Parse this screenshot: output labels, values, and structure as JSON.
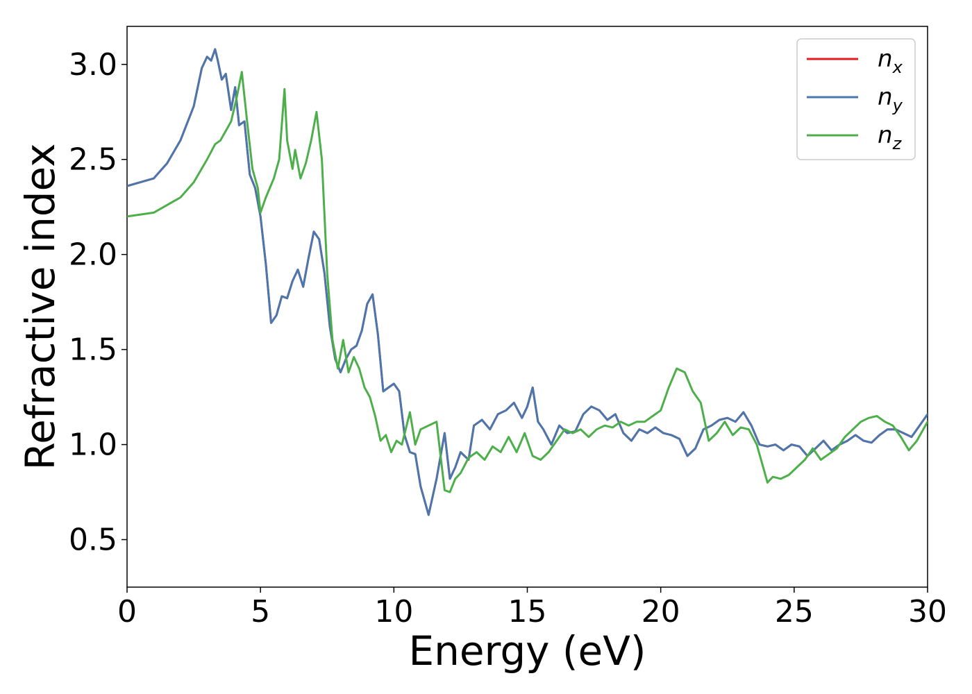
{
  "chart_data": {
    "type": "line",
    "xlabel": "Energy (eV)",
    "ylabel": "Refractive index",
    "xlim": [
      0,
      30
    ],
    "ylim": [
      0.25,
      3.2
    ],
    "x_ticks": [
      0,
      5,
      10,
      15,
      20,
      25,
      30
    ],
    "y_ticks": [
      0.5,
      1.0,
      1.5,
      2.0,
      2.5,
      3.0
    ],
    "x_tick_labels": [
      "0",
      "5",
      "10",
      "15",
      "20",
      "25",
      "30"
    ],
    "y_tick_labels": [
      "0.5",
      "1.0",
      "1.5",
      "2.0",
      "2.5",
      "3.0"
    ],
    "grid": false,
    "legend_position": "top-right",
    "series": [
      {
        "name": "n_x",
        "legend_base": "n",
        "legend_sub": "x",
        "color": "#e41a1c",
        "x": [
          0,
          1,
          1.5,
          2,
          2.5,
          2.8,
          3.0,
          3.15,
          3.3,
          3.4,
          3.55,
          3.7,
          3.9,
          4.05,
          4.2,
          4.4,
          4.6,
          4.8,
          5.0,
          5.2,
          5.4,
          5.6,
          5.8,
          6.0,
          6.2,
          6.4,
          6.6,
          6.8,
          7.0,
          7.2,
          7.4,
          7.6,
          7.8,
          8.0,
          8.2,
          8.4,
          8.6,
          8.8,
          9.0,
          9.2,
          9.4,
          9.6,
          9.8,
          10.0,
          10.2,
          10.4,
          10.6,
          10.8,
          11.0,
          11.3,
          11.6,
          11.9,
          12.1,
          12.3,
          12.5,
          12.8,
          13.0,
          13.3,
          13.6,
          13.9,
          14.2,
          14.5,
          14.8,
          15.0,
          15.2,
          15.4,
          15.6,
          15.9,
          16.2,
          16.5,
          16.8,
          17.1,
          17.4,
          17.7,
          18.0,
          18.3,
          18.6,
          18.9,
          19.2,
          19.5,
          19.8,
          20.1,
          20.4,
          20.7,
          21.0,
          21.3,
          21.6,
          21.9,
          22.2,
          22.5,
          22.8,
          23.1,
          23.4,
          23.7,
          24.0,
          24.3,
          24.6,
          24.9,
          25.2,
          25.5,
          25.8,
          26.1,
          26.4,
          26.7,
          27.0,
          27.3,
          27.6,
          27.9,
          28.2,
          28.5,
          28.8,
          29.1,
          29.4,
          29.7,
          30.0
        ],
        "y": [
          2.36,
          2.4,
          2.48,
          2.6,
          2.78,
          2.98,
          3.04,
          3.02,
          3.08,
          3.02,
          2.92,
          2.95,
          2.76,
          2.88,
          2.68,
          2.7,
          2.42,
          2.35,
          2.2,
          1.95,
          1.64,
          1.68,
          1.78,
          1.77,
          1.86,
          1.92,
          1.83,
          1.98,
          2.12,
          2.08,
          1.9,
          1.62,
          1.45,
          1.38,
          1.45,
          1.5,
          1.52,
          1.6,
          1.74,
          1.79,
          1.58,
          1.28,
          1.3,
          1.32,
          1.28,
          1.05,
          0.96,
          0.95,
          0.78,
          0.63,
          0.82,
          1.06,
          0.82,
          0.88,
          0.96,
          0.92,
          1.1,
          1.13,
          1.08,
          1.16,
          1.18,
          1.22,
          1.14,
          1.2,
          1.3,
          1.12,
          1.08,
          1.0,
          1.1,
          1.06,
          1.07,
          1.16,
          1.2,
          1.18,
          1.13,
          1.16,
          1.06,
          1.02,
          1.08,
          1.06,
          1.09,
          1.06,
          1.05,
          1.03,
          0.94,
          0.98,
          1.08,
          1.1,
          1.13,
          1.14,
          1.12,
          1.17,
          1.1,
          1.0,
          0.99,
          1.0,
          0.97,
          1.0,
          0.99,
          0.94,
          0.98,
          1.02,
          0.97,
          1.0,
          1.02,
          1.05,
          1.02,
          1.01,
          1.05,
          1.08,
          1.08,
          1.06,
          1.04,
          1.1,
          1.16
        ]
      },
      {
        "name": "n_y",
        "legend_base": "n",
        "legend_sub": "y",
        "color": "#4a77ad",
        "x": [
          0,
          1,
          1.5,
          2,
          2.5,
          2.8,
          3.0,
          3.15,
          3.3,
          3.4,
          3.55,
          3.7,
          3.9,
          4.05,
          4.2,
          4.4,
          4.6,
          4.8,
          5.0,
          5.2,
          5.4,
          5.6,
          5.8,
          6.0,
          6.2,
          6.4,
          6.6,
          6.8,
          7.0,
          7.2,
          7.4,
          7.6,
          7.8,
          8.0,
          8.2,
          8.4,
          8.6,
          8.8,
          9.0,
          9.2,
          9.4,
          9.6,
          9.8,
          10.0,
          10.2,
          10.4,
          10.6,
          10.8,
          11.0,
          11.3,
          11.6,
          11.9,
          12.1,
          12.3,
          12.5,
          12.8,
          13.0,
          13.3,
          13.6,
          13.9,
          14.2,
          14.5,
          14.8,
          15.0,
          15.2,
          15.4,
          15.6,
          15.9,
          16.2,
          16.5,
          16.8,
          17.1,
          17.4,
          17.7,
          18.0,
          18.3,
          18.6,
          18.9,
          19.2,
          19.5,
          19.8,
          20.1,
          20.4,
          20.7,
          21.0,
          21.3,
          21.6,
          21.9,
          22.2,
          22.5,
          22.8,
          23.1,
          23.4,
          23.7,
          24.0,
          24.3,
          24.6,
          24.9,
          25.2,
          25.5,
          25.8,
          26.1,
          26.4,
          26.7,
          27.0,
          27.3,
          27.6,
          27.9,
          28.2,
          28.5,
          28.8,
          29.1,
          29.4,
          29.7,
          30.0
        ],
        "y": [
          2.36,
          2.4,
          2.48,
          2.6,
          2.78,
          2.98,
          3.04,
          3.02,
          3.08,
          3.02,
          2.92,
          2.95,
          2.76,
          2.88,
          2.68,
          2.7,
          2.42,
          2.35,
          2.2,
          1.95,
          1.64,
          1.68,
          1.78,
          1.77,
          1.86,
          1.92,
          1.83,
          1.98,
          2.12,
          2.08,
          1.9,
          1.62,
          1.45,
          1.38,
          1.45,
          1.5,
          1.52,
          1.6,
          1.74,
          1.79,
          1.58,
          1.28,
          1.3,
          1.32,
          1.28,
          1.05,
          0.96,
          0.95,
          0.78,
          0.63,
          0.82,
          1.06,
          0.82,
          0.88,
          0.96,
          0.92,
          1.1,
          1.13,
          1.08,
          1.16,
          1.18,
          1.22,
          1.14,
          1.2,
          1.3,
          1.12,
          1.08,
          1.0,
          1.1,
          1.06,
          1.07,
          1.16,
          1.2,
          1.18,
          1.13,
          1.16,
          1.06,
          1.02,
          1.08,
          1.06,
          1.09,
          1.06,
          1.05,
          1.03,
          0.94,
          0.98,
          1.08,
          1.1,
          1.13,
          1.14,
          1.12,
          1.17,
          1.1,
          1.0,
          0.99,
          1.0,
          0.97,
          1.0,
          0.99,
          0.94,
          0.98,
          1.02,
          0.97,
          1.0,
          1.02,
          1.05,
          1.02,
          1.01,
          1.05,
          1.08,
          1.08,
          1.06,
          1.04,
          1.1,
          1.16
        ]
      },
      {
        "name": "n_z",
        "legend_base": "n",
        "legend_sub": "z",
        "color": "#4daf4a",
        "x": [
          0,
          1,
          2,
          2.5,
          3.0,
          3.3,
          3.5,
          3.7,
          3.9,
          4.1,
          4.3,
          4.5,
          4.7,
          4.9,
          5.0,
          5.2,
          5.5,
          5.7,
          5.9,
          6.0,
          6.2,
          6.3,
          6.5,
          6.7,
          6.9,
          7.1,
          7.3,
          7.5,
          7.7,
          7.9,
          8.1,
          8.3,
          8.5,
          8.7,
          8.9,
          9.1,
          9.3,
          9.5,
          9.7,
          9.9,
          10.1,
          10.3,
          10.6,
          10.8,
          11.0,
          11.3,
          11.6,
          11.9,
          12.1,
          12.3,
          12.5,
          12.8,
          13.1,
          13.4,
          13.7,
          14.0,
          14.3,
          14.6,
          14.9,
          15.2,
          15.5,
          15.8,
          16.1,
          16.4,
          16.7,
          17.0,
          17.3,
          17.6,
          17.9,
          18.2,
          18.5,
          18.8,
          19.1,
          19.4,
          19.7,
          20.0,
          20.3,
          20.6,
          20.9,
          21.2,
          21.5,
          21.8,
          22.1,
          22.4,
          22.7,
          23.0,
          23.3,
          23.6,
          23.9,
          24.0,
          24.2,
          24.5,
          24.8,
          25.1,
          25.4,
          25.7,
          26.0,
          26.3,
          26.6,
          26.9,
          27.2,
          27.5,
          27.8,
          28.1,
          28.4,
          28.7,
          29.0,
          29.3,
          29.6,
          30.0
        ],
        "y": [
          2.2,
          2.22,
          2.3,
          2.38,
          2.5,
          2.58,
          2.6,
          2.65,
          2.7,
          2.82,
          2.96,
          2.7,
          2.45,
          2.35,
          2.22,
          2.3,
          2.4,
          2.5,
          2.87,
          2.6,
          2.45,
          2.55,
          2.4,
          2.48,
          2.6,
          2.75,
          2.5,
          1.9,
          1.55,
          1.4,
          1.55,
          1.38,
          1.46,
          1.4,
          1.3,
          1.25,
          1.15,
          1.02,
          1.05,
          0.96,
          1.02,
          1.0,
          1.17,
          1.0,
          1.08,
          1.1,
          1.12,
          0.76,
          0.75,
          0.82,
          0.85,
          0.93,
          0.96,
          0.92,
          0.99,
          0.96,
          1.04,
          0.96,
          1.06,
          0.94,
          0.92,
          0.96,
          1.02,
          1.08,
          1.06,
          1.08,
          1.04,
          1.08,
          1.1,
          1.09,
          1.12,
          1.1,
          1.12,
          1.12,
          1.15,
          1.18,
          1.3,
          1.4,
          1.38,
          1.28,
          1.22,
          1.02,
          1.06,
          1.12,
          1.05,
          1.09,
          1.08,
          1.0,
          0.85,
          0.8,
          0.83,
          0.82,
          0.84,
          0.88,
          0.92,
          0.98,
          0.92,
          0.95,
          0.98,
          1.04,
          1.08,
          1.12,
          1.14,
          1.15,
          1.12,
          1.1,
          1.04,
          0.97,
          1.02,
          1.12
        ]
      }
    ]
  }
}
